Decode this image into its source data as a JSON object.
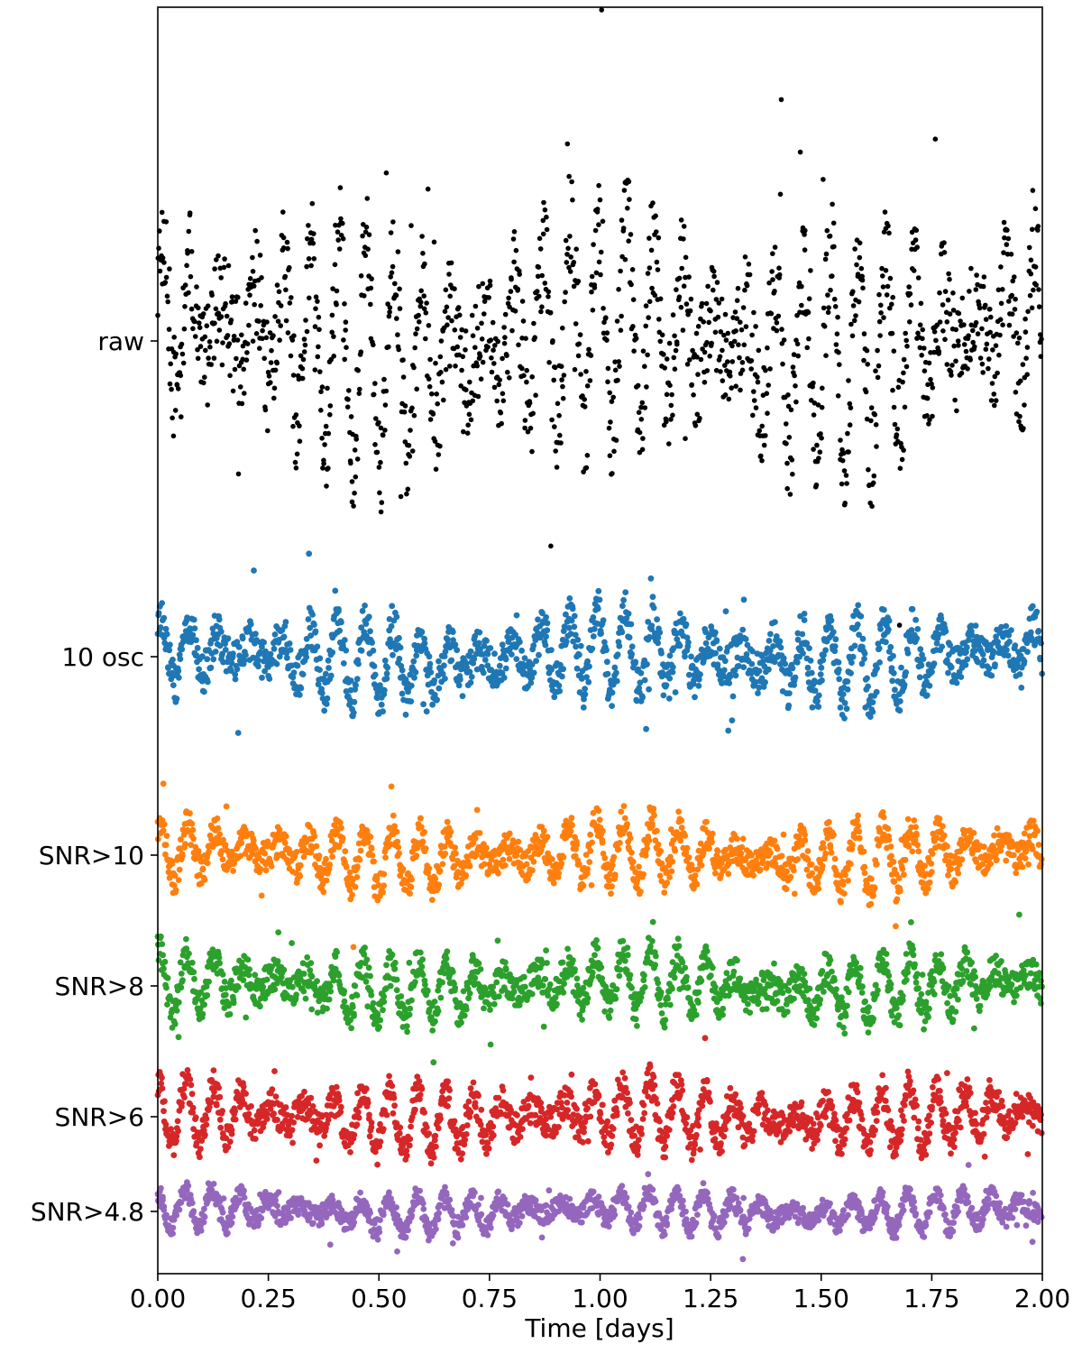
{
  "chart_data": {
    "type": "scatter",
    "title": "",
    "xlabel": "Time [days]",
    "ylabel": "",
    "xlim": [
      0.0,
      2.0
    ],
    "x_ticks": [
      "0.00",
      "0.25",
      "0.50",
      "0.75",
      "1.00",
      "1.25",
      "1.50",
      "1.75",
      "2.00"
    ],
    "y_categories": [
      "raw",
      "10 osc",
      "SNR>10",
      "SNR>8",
      "SNR>6",
      "SNR>4.8"
    ],
    "grid": false,
    "legend": "none",
    "series": [
      {
        "label": "raw",
        "color": "#000000",
        "spread": "large",
        "seed": 11
      },
      {
        "label": "10 osc",
        "color": "#1f77b4",
        "spread": "medium",
        "seed": 23
      },
      {
        "label": "SNR>10",
        "color": "#ff7f0e",
        "spread": "small",
        "seed": 37
      },
      {
        "label": "SNR>8",
        "color": "#2ca02c",
        "spread": "small",
        "seed": 41
      },
      {
        "label": "SNR>6",
        "color": "#d62728",
        "spread": "small",
        "seed": 53
      },
      {
        "label": "SNR>4.8",
        "color": "#9467bd",
        "spread": "smallest",
        "seed": 67
      }
    ]
  }
}
